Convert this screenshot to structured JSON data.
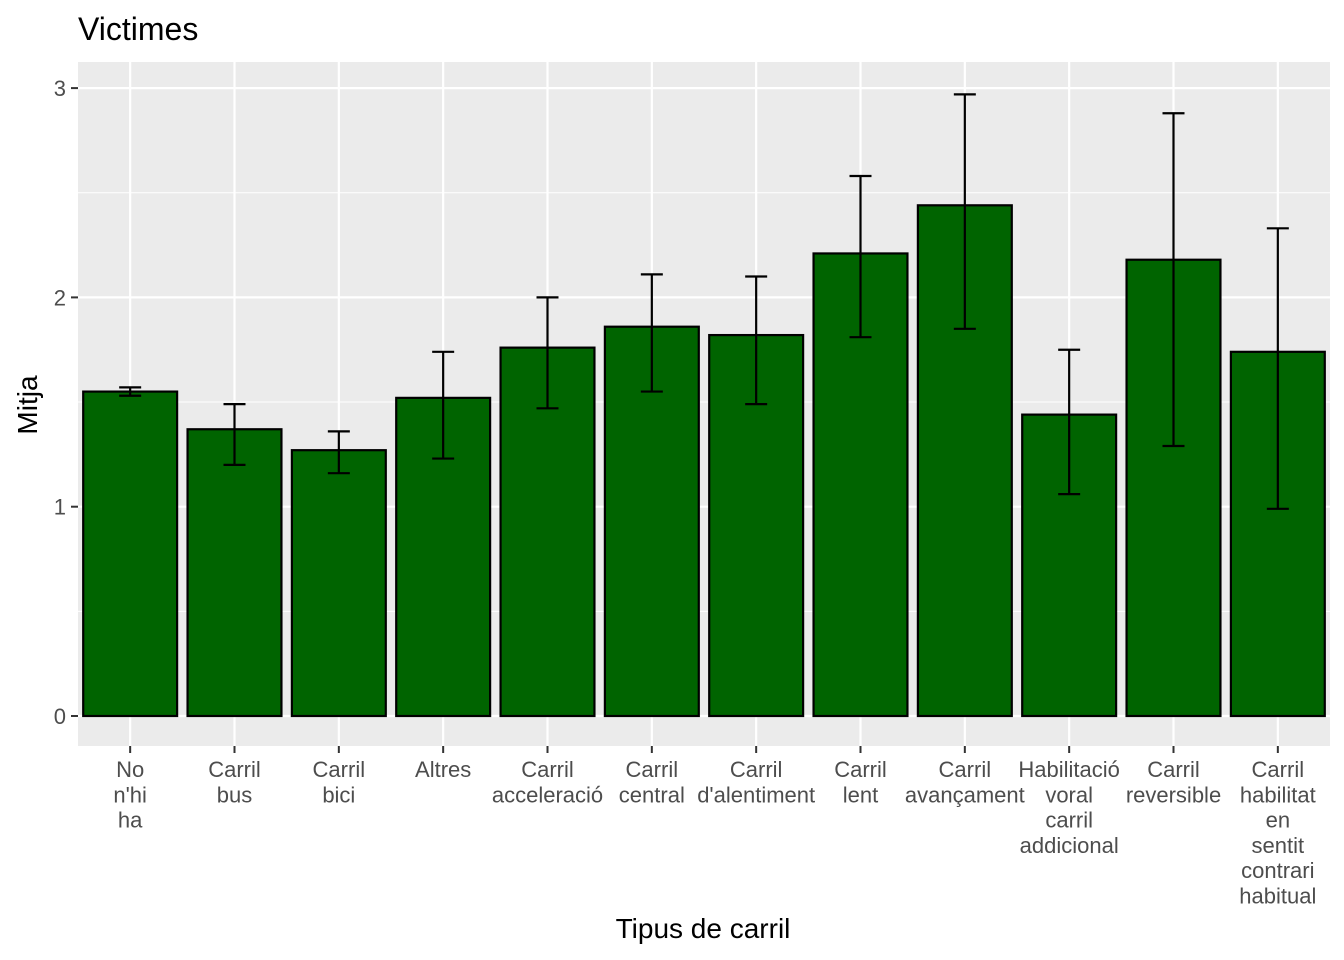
{
  "chart_data": {
    "type": "bar",
    "title": "Victimes",
    "xlabel": "Tipus de carril",
    "ylabel": "Mitja",
    "ylim": [
      -0.14,
      3.12
    ],
    "yticks": [
      0,
      1,
      2,
      3
    ],
    "grid": true,
    "legend": "none",
    "bar_color": "#006400",
    "bar_outline": "#000000",
    "panel_background": "#ebebeb",
    "grid_color": "#ffffff",
    "categories": [
      [
        "No",
        "n'hi",
        "ha"
      ],
      [
        "Carril",
        "bus"
      ],
      [
        "Carril",
        "bici"
      ],
      [
        "Altres"
      ],
      [
        "Carril",
        "acceleració"
      ],
      [
        "Carril",
        "central"
      ],
      [
        "Carril",
        "d'alentiment"
      ],
      [
        "Carril",
        "lent"
      ],
      [
        "Carril",
        "avançament"
      ],
      [
        "Habilitació",
        "voral",
        "carril",
        "addicional"
      ],
      [
        "Carril",
        "reversible"
      ],
      [
        "Carril",
        "habilitat",
        "en",
        "sentit",
        "contrari",
        "habitual"
      ]
    ],
    "values": [
      1.55,
      1.37,
      1.27,
      1.52,
      1.76,
      1.86,
      1.82,
      2.21,
      2.44,
      1.44,
      2.18,
      1.74
    ],
    "error_low": [
      1.53,
      1.2,
      1.16,
      1.23,
      1.47,
      1.55,
      1.49,
      1.81,
      1.85,
      1.06,
      1.29,
      0.99
    ],
    "error_high": [
      1.57,
      1.49,
      1.36,
      1.74,
      2.0,
      2.11,
      2.1,
      2.58,
      2.97,
      1.75,
      2.88,
      2.33
    ]
  }
}
